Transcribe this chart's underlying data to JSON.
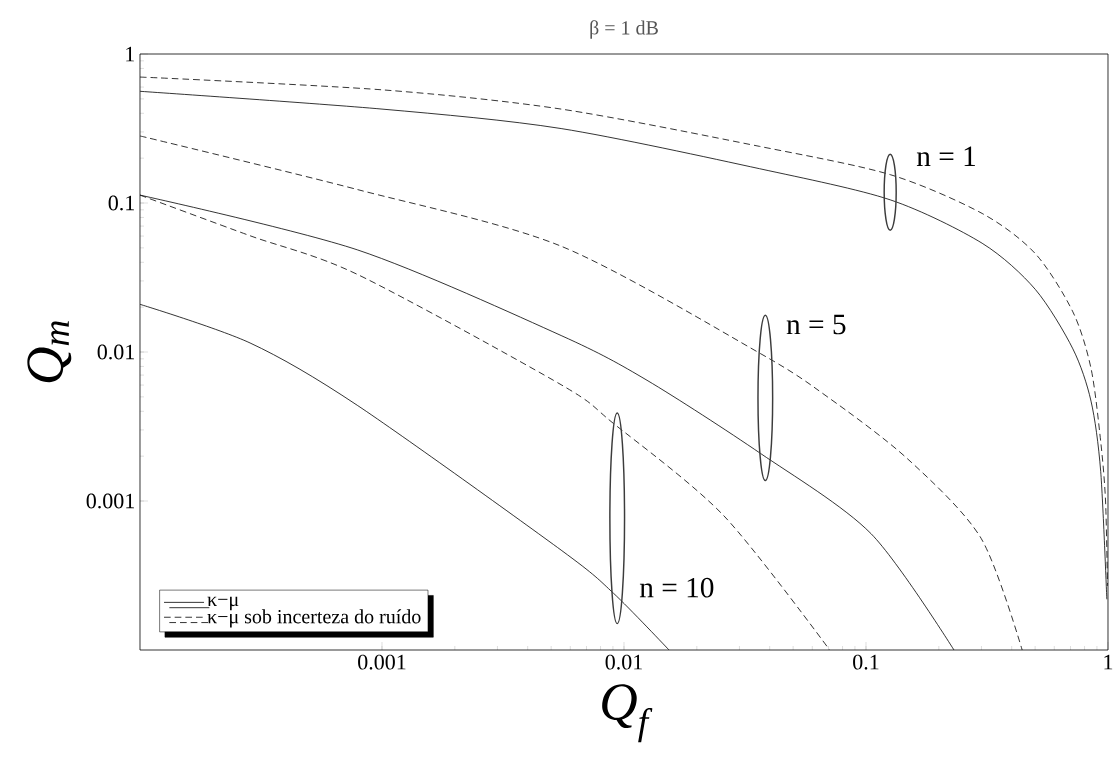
{
  "chart_data": {
    "type": "line",
    "title": "β = 1 dB",
    "xlabel": "Q$_{f}$",
    "ylabel": "Q$_{m}$",
    "log": "xy",
    "xlim": [
      0.0001,
      1
    ],
    "ylim": [
      0.0001,
      1
    ],
    "xticks": [
      0.001,
      0.01,
      0.1,
      1
    ],
    "yticks": [
      0.001,
      0.01,
      0.1,
      1
    ],
    "grid": false,
    "legend": "bottom left",
    "series": [
      {
        "name": "κ−μ",
        "color": "#000000",
        "line_style": "solid",
        "x": [
          0.0001,
          0.001,
          0.0055,
          0.0363,
          0.126,
          0.302,
          0.501,
          0.716,
          0.851,
          0.933,
          0.989
        ],
        "values": [
          0.562,
          0.427,
          0.316,
          0.17,
          0.105,
          0.0537,
          0.0263,
          0.0105,
          0.00468,
          0.00158,
          0.000219
        ]
      },
      {
        "name": "κ−μ sob incerteza do ruído",
        "color": "#000000",
        "line_style": "dashed",
        "x": [
          0.0001,
          0.001,
          0.0055,
          0.0363,
          0.126,
          0.302,
          0.501,
          0.716,
          0.851,
          0.933,
          0.977,
          0.995
        ],
        "values": [
          0.701,
          0.575,
          0.427,
          0.24,
          0.155,
          0.0851,
          0.0457,
          0.0186,
          0.00776,
          0.00251,
          0.001,
          0.000269
        ]
      },
      {
        "color": "#000000",
        "line_style": "solid",
        "x": [
          0.0001,
          0.000794,
          0.0055,
          0.01245,
          0.0366,
          0.105,
          0.231
        ],
        "values": [
          0.113,
          0.0484,
          0.0129,
          0.00646,
          0.00209,
          0.000603,
          0.0001
        ]
      },
      {
        "color": "#000000",
        "line_style": "dashed",
        "x": [
          0.0001,
          0.000794,
          0.0055,
          0.0366,
          0.0692,
          0.149,
          0.299,
          0.442
        ],
        "values": [
          0.282,
          0.123,
          0.0513,
          0.00977,
          0.00501,
          0.00191,
          0.000562,
          0.0001
        ]
      },
      {
        "color": "#000000",
        "line_style": "dashed",
        "x": [
          0.0001,
          0.000285,
          0.000794,
          0.0055,
          0.00906,
          0.0259,
          0.0708
        ],
        "values": [
          0.113,
          0.0603,
          0.0331,
          0.00603,
          0.00331,
          0.000794,
          0.0001
        ]
      },
      {
        "color": "#000000",
        "line_style": "solid",
        "x": [
          0.0001,
          0.000285,
          0.000794,
          0.0055,
          0.00906,
          0.01535
        ],
        "values": [
          0.0209,
          0.0115,
          0.00437,
          0.000468,
          0.00024,
          0.0001
        ]
      }
    ],
    "annotations": [
      "n = 1",
      "n = 5",
      "n = 10"
    ]
  }
}
